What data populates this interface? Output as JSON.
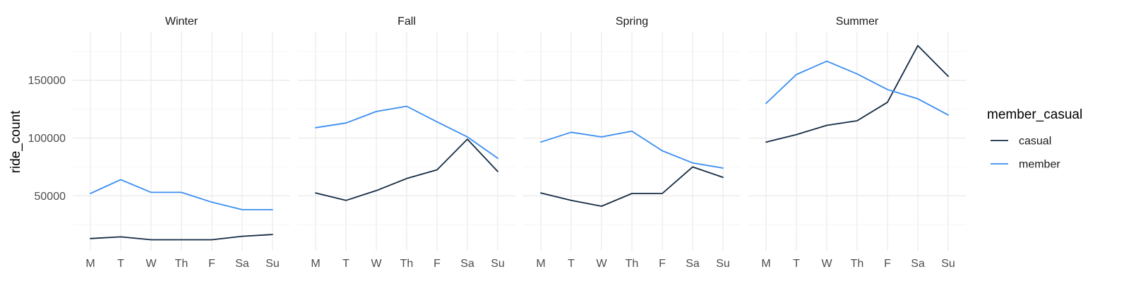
{
  "chart_data": {
    "type": "line",
    "facet_by": "season",
    "ylabel": "ride_count",
    "xlabel": "",
    "categories": [
      "M",
      "T",
      "W",
      "Th",
      "F",
      "Sa",
      "Su"
    ],
    "ylim": [
      2500,
      192000
    ],
    "yticks": [
      50000,
      100000,
      150000
    ],
    "yticks_minor": [
      25000,
      75000,
      125000,
      175000
    ],
    "grid": true,
    "legend": {
      "title": "member_casual",
      "position": "right"
    },
    "colors": {
      "casual": "#132B43",
      "member": "#3A8EF2"
    },
    "panels": [
      {
        "label": "Winter",
        "series": [
          {
            "name": "casual",
            "values": [
              13000,
              14500,
              12000,
              12000,
              12000,
              15000,
              16500
            ]
          },
          {
            "name": "member",
            "values": [
              52000,
              64000,
              53000,
              53000,
              44500,
              38000,
              38000
            ]
          }
        ]
      },
      {
        "label": "Fall",
        "series": [
          {
            "name": "casual",
            "values": [
              52500,
              46000,
              54500,
              65000,
              72500,
              99000,
              71000
            ]
          },
          {
            "name": "member",
            "values": [
              109000,
              113000,
              123000,
              127500,
              114000,
              101000,
              82500
            ]
          }
        ]
      },
      {
        "label": "Spring",
        "series": [
          {
            "name": "casual",
            "values": [
              52500,
              46000,
              41000,
              52000,
              52000,
              75000,
              66000
            ]
          },
          {
            "name": "member",
            "values": [
              96500,
              105000,
              101000,
              106000,
              89000,
              78500,
              74000
            ]
          }
        ]
      },
      {
        "label": "Summer",
        "series": [
          {
            "name": "casual",
            "values": [
              96500,
              103000,
              111000,
              115000,
              131000,
              180000,
              153500
            ]
          },
          {
            "name": "member",
            "values": [
              130000,
              155000,
              166500,
              155500,
              142000,
              134000,
              120000
            ]
          }
        ]
      }
    ]
  }
}
